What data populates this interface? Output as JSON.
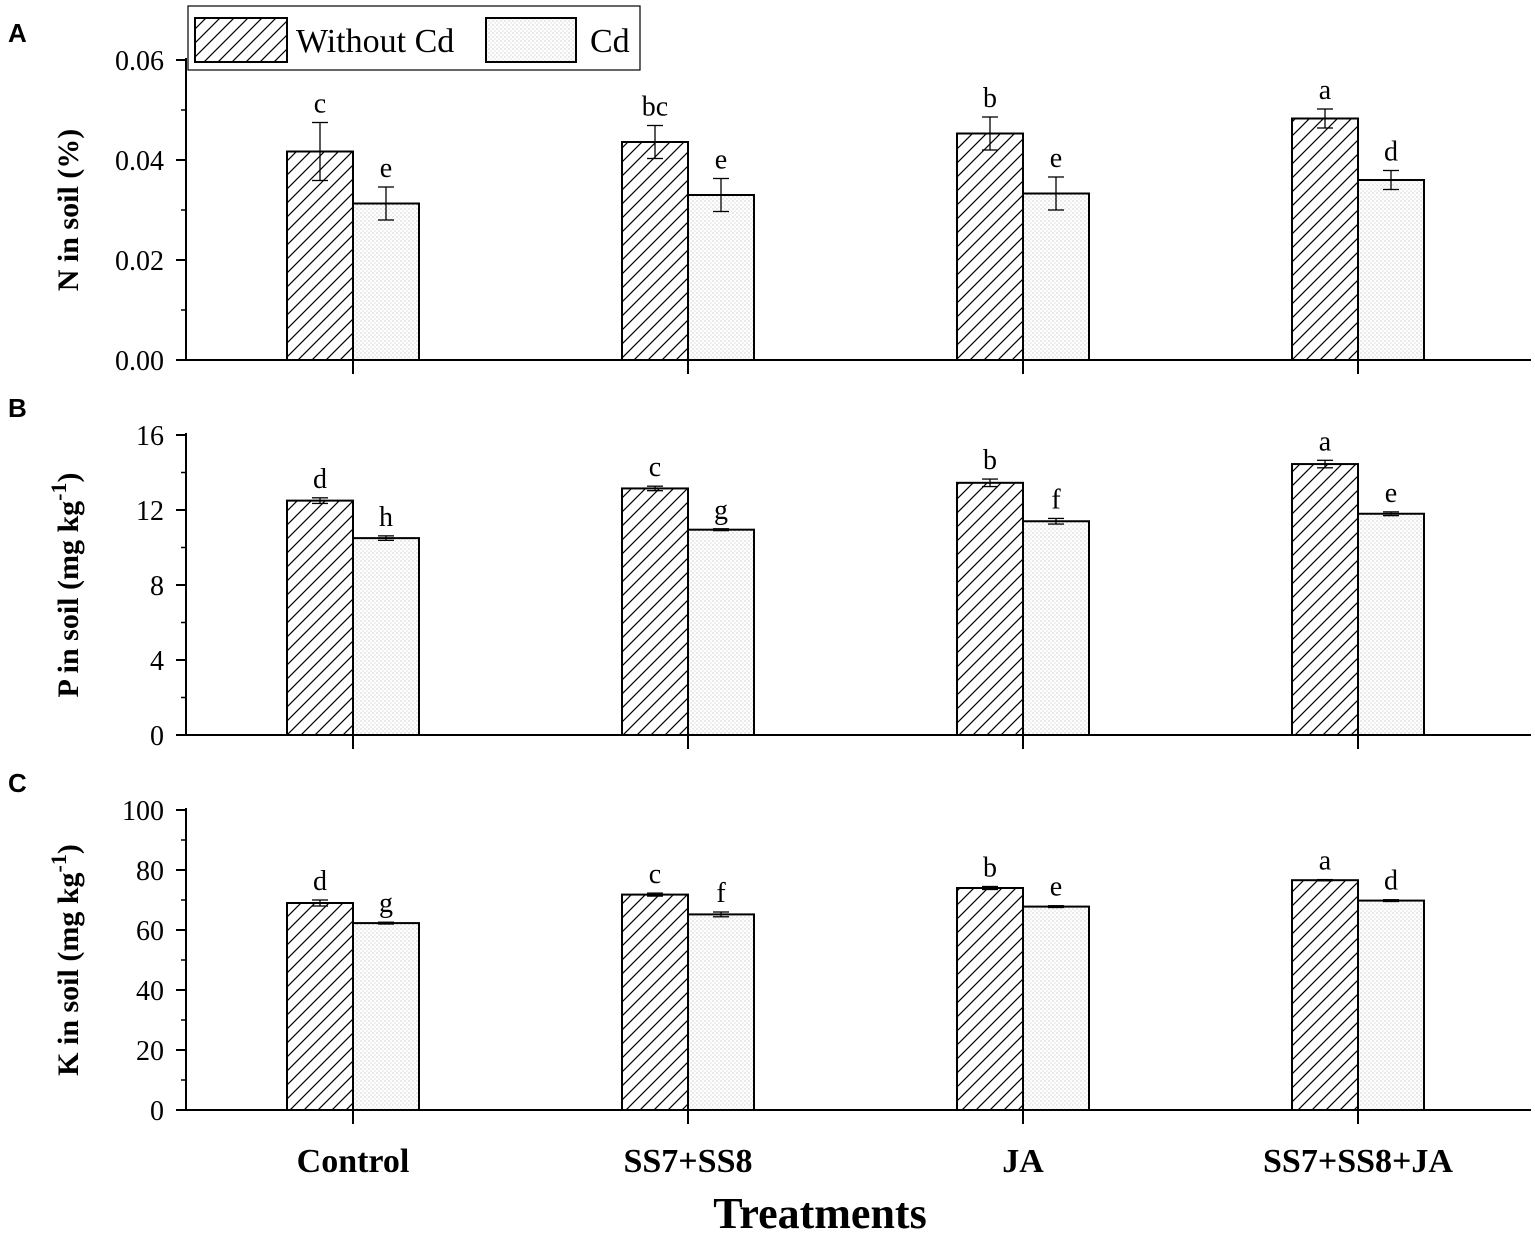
{
  "chart_data": {
    "type": "bar",
    "xlabel": "Treatments",
    "categories": [
      "Control",
      "SS7+SS8",
      "JA",
      "SS7+SS8+JA"
    ],
    "legend": {
      "placement": "top-left",
      "entries": [
        {
          "name": "Without Cd",
          "pattern": "hatch"
        },
        {
          "name": "Cd",
          "pattern": "dots"
        }
      ]
    },
    "panels": [
      {
        "panel_label": "A",
        "ylabel": "N in soil (%)",
        "ylabel_superscript": "",
        "ylabel_suffix": "",
        "ylim": [
          0,
          0.06
        ],
        "yticks": [
          0,
          0.02,
          0.04,
          0.06
        ],
        "yticklabels": [
          "0.00",
          "0.02",
          "0.04",
          "0.06"
        ],
        "series": [
          {
            "name": "Without Cd",
            "values": [
              0.0417,
              0.0436,
              0.0453,
              0.0483
            ],
            "errors": [
              0.0058,
              0.0033,
              0.0033,
              0.0019
            ],
            "letters": [
              "c",
              "bc",
              "b",
              "a"
            ]
          },
          {
            "name": "Cd",
            "values": [
              0.0313,
              0.033,
              0.0333,
              0.036
            ],
            "errors": [
              0.0033,
              0.0033,
              0.0033,
              0.0019
            ],
            "letters": [
              "e",
              "e",
              "e",
              "d"
            ]
          }
        ]
      },
      {
        "panel_label": "B",
        "ylabel": "P in soil (mg kg",
        "ylabel_superscript": "-1",
        "ylabel_suffix": ")",
        "ylim": [
          0,
          16
        ],
        "yticks": [
          0,
          4,
          8,
          12,
          16
        ],
        "yticklabels": [
          "0",
          "4",
          "8",
          "12",
          "16"
        ],
        "series": [
          {
            "name": "Without Cd",
            "values": [
              12.5,
              13.15,
              13.45,
              14.45
            ],
            "errors": [
              0.15,
              0.12,
              0.2,
              0.2
            ],
            "letters": [
              "d",
              "c",
              "b",
              "a"
            ]
          },
          {
            "name": "Cd",
            "values": [
              10.5,
              10.95,
              11.4,
              11.8
            ],
            "errors": [
              0.12,
              0.05,
              0.15,
              0.1
            ],
            "letters": [
              "h",
              "g",
              "f",
              "e"
            ]
          }
        ]
      },
      {
        "panel_label": "C",
        "ylabel": "K in soil (mg kg",
        "ylabel_superscript": "-1",
        "ylabel_suffix": ")",
        "ylim": [
          0,
          100
        ],
        "yticks": [
          0,
          20,
          40,
          60,
          80,
          100
        ],
        "yticklabels": [
          "0",
          "20",
          "40",
          "60",
          "80",
          "100"
        ],
        "series": [
          {
            "name": "Without Cd",
            "values": [
              69,
              71.8,
              74,
              76.6
            ],
            "errors": [
              1.0,
              0.5,
              0.5,
              0.2
            ],
            "letters": [
              "d",
              "c",
              "b",
              "a"
            ]
          },
          {
            "name": "Cd",
            "values": [
              62.3,
              65.2,
              67.8,
              69.8
            ],
            "errors": [
              0.3,
              0.8,
              0.3,
              0.3
            ],
            "letters": [
              "g",
              "f",
              "e",
              "d"
            ]
          }
        ]
      }
    ]
  }
}
